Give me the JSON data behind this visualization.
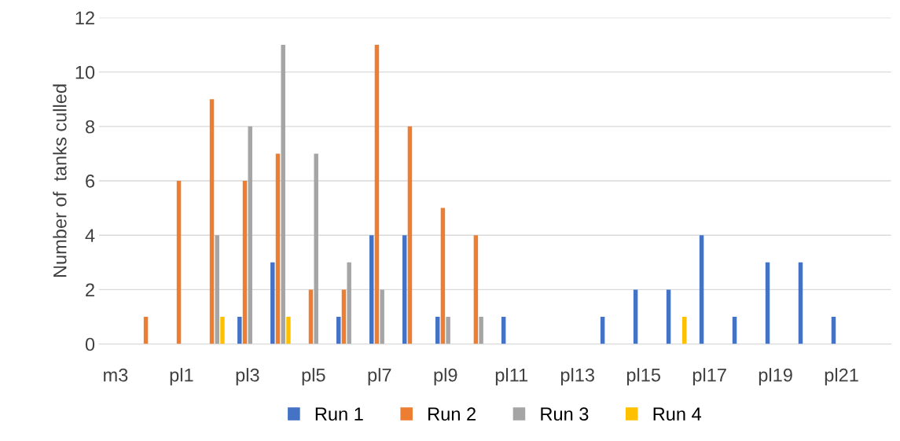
{
  "chart_data": {
    "type": "bar",
    "ylabel": "Number of  tanks culled",
    "categories": [
      "m3",
      null,
      "pl1",
      null,
      "pl3",
      null,
      "pl5",
      null,
      "pl7",
      null,
      "pl9",
      null,
      "pl11",
      null,
      "pl13",
      null,
      "pl15",
      null,
      "pl17",
      null,
      "pl19",
      null,
      "pl21",
      null
    ],
    "series": [
      {
        "name": "Run 1",
        "color": "#4472c4",
        "values": [
          null,
          null,
          null,
          null,
          1,
          3,
          null,
          1,
          4,
          4,
          1,
          null,
          1,
          null,
          null,
          1,
          2,
          2,
          4,
          1,
          3,
          3,
          1,
          null
        ]
      },
      {
        "name": "Run 2",
        "color": "#ed7d31",
        "values": [
          null,
          1,
          6,
          9,
          6,
          7,
          2,
          2,
          11,
          8,
          5,
          4,
          null,
          null,
          null,
          null,
          null,
          null,
          null,
          null,
          null,
          null,
          null,
          null
        ]
      },
      {
        "name": "Run 3",
        "color": "#a5a5a5",
        "values": [
          null,
          null,
          null,
          4,
          8,
          11,
          7,
          3,
          2,
          null,
          1,
          1,
          null,
          null,
          null,
          null,
          null,
          null,
          null,
          null,
          null,
          null,
          null,
          null
        ]
      },
      {
        "name": "Run 4",
        "color": "#ffc000",
        "values": [
          null,
          null,
          null,
          1,
          null,
          1,
          null,
          null,
          null,
          null,
          null,
          null,
          null,
          null,
          null,
          null,
          null,
          1,
          null,
          null,
          null,
          null,
          null,
          null
        ]
      }
    ],
    "ylim": [
      0,
      12
    ],
    "yticks": [
      0,
      2,
      4,
      6,
      8,
      10,
      12
    ],
    "grid": "y",
    "legend": "bottom"
  }
}
